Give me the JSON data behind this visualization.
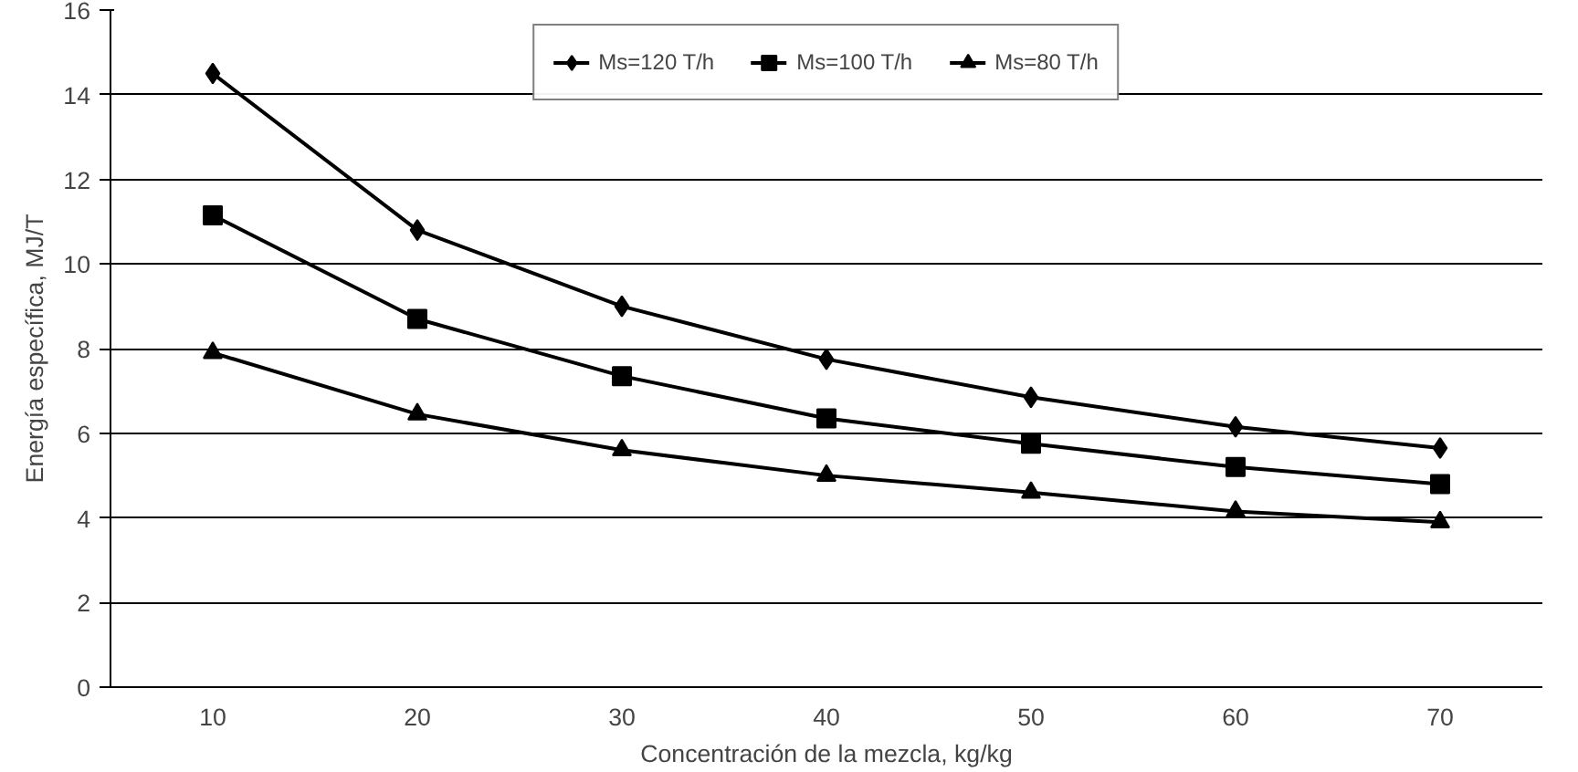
{
  "chart_data": {
    "type": "line",
    "xlabel": "Concentración de la mezcla, kg/kg",
    "ylabel": "Energía específica, MJ/T",
    "categories": [
      "10",
      "20",
      "30",
      "40",
      "50",
      "60",
      "70"
    ],
    "series": [
      {
        "name": "Ms=120 T/h",
        "color": "#000000",
        "marker": "diamond",
        "values": [
          14.5,
          10.8,
          9.0,
          7.75,
          6.85,
          6.15,
          5.65
        ]
      },
      {
        "name": "Ms=100 T/h",
        "color": "#000000",
        "marker": "square",
        "values": [
          11.15,
          8.7,
          7.35,
          6.35,
          5.75,
          5.2,
          4.8
        ]
      },
      {
        "name": "Ms=80 T/h",
        "color": "#000000",
        "marker": "triangle",
        "values": [
          7.9,
          6.45,
          5.6,
          5.0,
          4.6,
          4.15,
          3.9
        ]
      }
    ],
    "ylim": [
      0,
      16
    ],
    "yticks": [
      0,
      2,
      4,
      6,
      8,
      10,
      12,
      14,
      16
    ],
    "grid": "y",
    "legend": "top",
    "line_style": "solid"
  }
}
